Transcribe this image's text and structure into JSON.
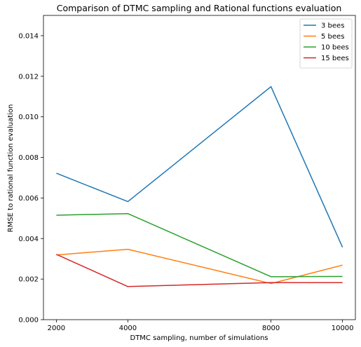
{
  "chart_data": {
    "type": "line",
    "title": "Comparison of DTMC sampling and Rational functions evaluation",
    "xlabel": "DTMC sampling, number of simulations",
    "ylabel": "RMSE to rational function evaluation",
    "x": [
      2000,
      4000,
      8000,
      10000
    ],
    "x_tick_labels": [
      "2000",
      "4000",
      "8000",
      "10000"
    ],
    "ylim": [
      0,
      0.015
    ],
    "y_ticks": [
      0,
      0.002,
      0.004,
      0.006,
      0.008,
      0.01,
      0.012,
      0.014
    ],
    "y_tick_labels": [
      "0.000",
      "0.002",
      "0.004",
      "0.006",
      "0.008",
      "0.010",
      "0.012",
      "0.014"
    ],
    "grid": false,
    "legend_position": "top-right",
    "series": [
      {
        "name": "3 bees",
        "color": "#1f77b4",
        "values": [
          0.00722,
          0.00582,
          0.01149,
          0.00357
        ]
      },
      {
        "name": "5 bees",
        "color": "#ff7f0e",
        "values": [
          0.00319,
          0.00347,
          0.00178,
          0.00269
        ]
      },
      {
        "name": "10 bees",
        "color": "#2ca02c",
        "values": [
          0.00515,
          0.00523,
          0.00212,
          0.00213
        ]
      },
      {
        "name": "15 bees",
        "color": "#d62728",
        "values": [
          0.00322,
          0.00163,
          0.00183,
          0.00183
        ]
      }
    ]
  }
}
